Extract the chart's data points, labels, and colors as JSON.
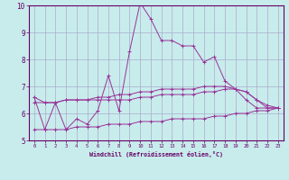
{
  "xlabel": "Windchill (Refroidissement éolien,°C)",
  "bg_color": "#c8ecec",
  "grid_color": "#aaaacc",
  "line_color": "#993399",
  "xlim": [
    -0.5,
    23.5
  ],
  "ylim": [
    5,
    10
  ],
  "yticks": [
    5,
    6,
    7,
    8,
    9,
    10
  ],
  "xticks": [
    0,
    1,
    2,
    3,
    4,
    5,
    6,
    7,
    8,
    9,
    10,
    11,
    12,
    13,
    14,
    15,
    16,
    17,
    18,
    19,
    20,
    21,
    22,
    23
  ],
  "lines": [
    [
      6.6,
      5.4,
      6.4,
      5.4,
      5.8,
      5.6,
      6.1,
      7.4,
      6.1,
      8.3,
      10.1,
      9.5,
      8.7,
      8.7,
      8.5,
      8.5,
      7.9,
      8.1,
      7.2,
      6.9,
      6.5,
      6.2,
      6.2,
      6.2
    ],
    [
      6.6,
      6.4,
      6.4,
      6.5,
      6.5,
      6.5,
      6.6,
      6.6,
      6.7,
      6.7,
      6.8,
      6.8,
      6.9,
      6.9,
      6.9,
      6.9,
      7.0,
      7.0,
      7.0,
      6.9,
      6.8,
      6.5,
      6.3,
      6.2
    ],
    [
      6.4,
      6.4,
      6.4,
      6.5,
      6.5,
      6.5,
      6.5,
      6.5,
      6.5,
      6.5,
      6.6,
      6.6,
      6.7,
      6.7,
      6.7,
      6.7,
      6.8,
      6.8,
      6.9,
      6.9,
      6.8,
      6.5,
      6.2,
      6.2
    ],
    [
      5.4,
      5.4,
      5.4,
      5.4,
      5.5,
      5.5,
      5.5,
      5.6,
      5.6,
      5.6,
      5.7,
      5.7,
      5.7,
      5.8,
      5.8,
      5.8,
      5.8,
      5.9,
      5.9,
      6.0,
      6.0,
      6.1,
      6.1,
      6.2
    ]
  ]
}
